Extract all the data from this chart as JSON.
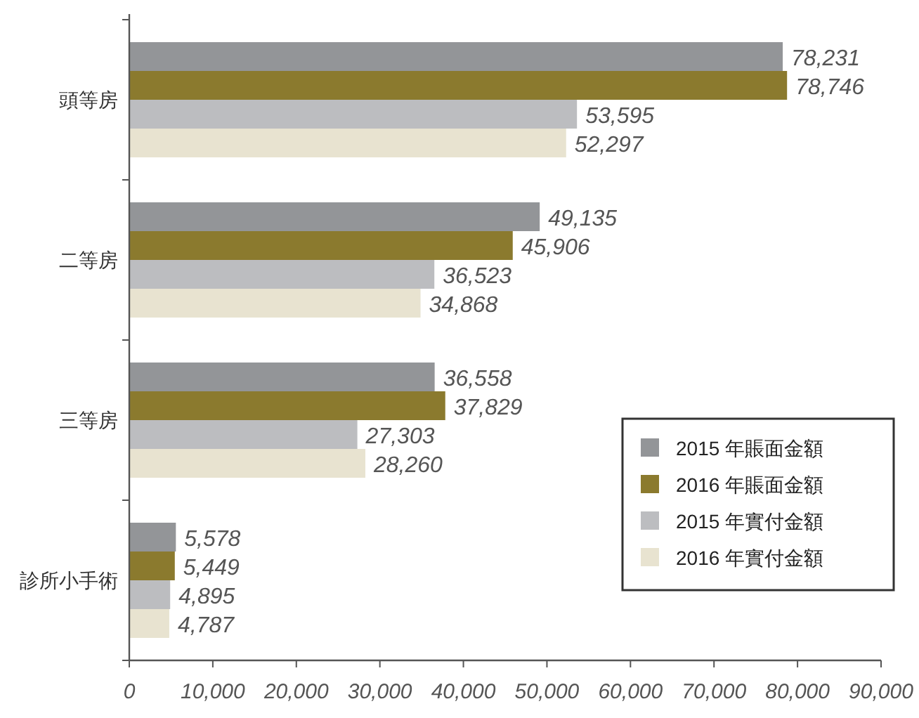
{
  "chart_data": {
    "type": "bar",
    "orientation": "horizontal",
    "categories": [
      "頭等房",
      "二等房",
      "三等房",
      "診所小手術"
    ],
    "series": [
      {
        "name": "2015 年賬面金額",
        "color": "#939598",
        "values": [
          78231,
          49135,
          36558,
          5578
        ],
        "value_labels": [
          "78,231",
          "49,135",
          "36,558",
          "5,578"
        ]
      },
      {
        "name": "2016 年賬面金額",
        "color": "#8b7a2e",
        "values": [
          78746,
          45906,
          37829,
          5449
        ],
        "value_labels": [
          "78,746",
          "45,906",
          "37,829",
          "5,449"
        ]
      },
      {
        "name": "2015 年實付金額",
        "color": "#bcbdc0",
        "values": [
          53595,
          36523,
          27303,
          4895
        ],
        "value_labels": [
          "53,595",
          "36,523",
          "27,303",
          "4,895"
        ]
      },
      {
        "name": "2016 年實付金額",
        "color": "#e8e3d0",
        "values": [
          52297,
          34868,
          28260,
          4787
        ],
        "value_labels": [
          "52,297",
          "34,868",
          "28,260",
          "4,787"
        ]
      }
    ],
    "xlim": [
      0,
      90000
    ],
    "xticks": [
      0,
      {
        "value": 10000,
        "label": "10,000"
      },
      {
        "value": 20000,
        "label": "20,000"
      },
      {
        "value": 30000,
        "label": "30,000"
      },
      {
        "value": 40000,
        "label": "40,000"
      },
      {
        "value": 50000,
        "label": "50,000"
      },
      {
        "value": 60000,
        "label": "60,000"
      },
      {
        "value": 70000,
        "label": "70,000"
      },
      {
        "value": 80000,
        "label": "80,000"
      },
      {
        "value": 90000,
        "label": "90,000"
      }
    ],
    "legend": "bottom right",
    "grid": false
  }
}
